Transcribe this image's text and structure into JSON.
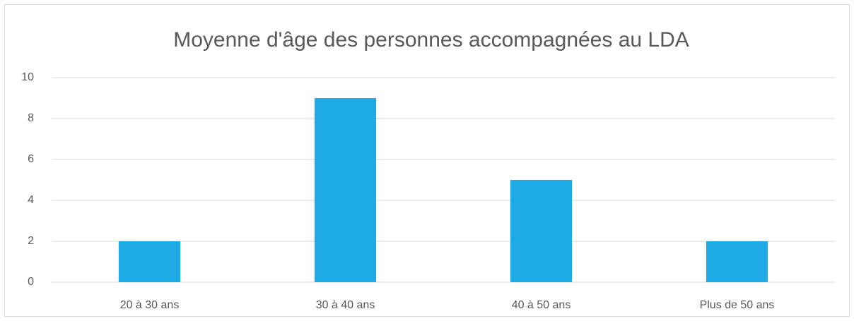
{
  "chart_data": {
    "type": "bar",
    "title": "Moyenne d'âge des personnes accompagnées au LDA",
    "categories": [
      "20 à 30 ans",
      "30 à 40 ans",
      "40 à 50 ans",
      "Plus de 50 ans"
    ],
    "values": [
      2,
      9,
      5,
      2
    ],
    "color": "#1eaae4",
    "ylim": [
      0,
      10
    ],
    "yticks": [
      0,
      2,
      4,
      6,
      8,
      10
    ],
    "grid": true
  }
}
